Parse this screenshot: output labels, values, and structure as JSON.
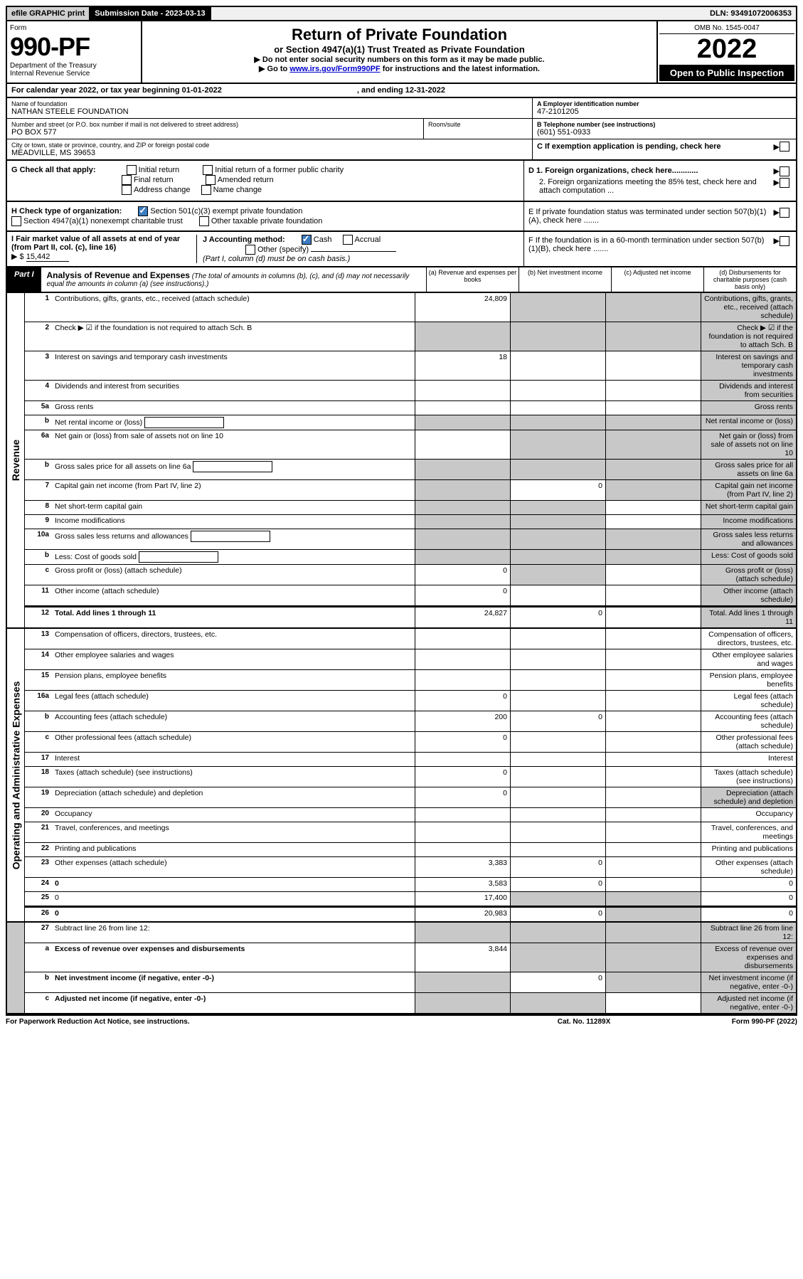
{
  "top_bar": {
    "efile": "efile GRAPHIC print",
    "submission_label": "Submission Date - 2023-03-13",
    "dln": "DLN: 93491072006353"
  },
  "header": {
    "form_label": "Form",
    "form_number": "990-PF",
    "dept": "Department of the Treasury",
    "irs": "Internal Revenue Service",
    "title": "Return of Private Foundation",
    "subtitle1": "or Section 4947(a)(1) Trust Treated as Private Foundation",
    "subtitle2": "▶ Do not enter social security numbers on this form as it may be made public.",
    "subtitle3_pre": "▶ Go to ",
    "subtitle3_link": "www.irs.gov/Form990PF",
    "subtitle3_post": " for instructions and the latest information.",
    "omb": "OMB No. 1545-0047",
    "year": "2022",
    "open": "Open to Public Inspection"
  },
  "calendar": {
    "pre": "For calendar year 2022, or tax year beginning 01-01-2022",
    "mid": ", and ending 12-31-2022"
  },
  "info": {
    "name_lbl": "Name of foundation",
    "name_val": "NATHAN STEELE FOUNDATION",
    "addr_lbl": "Number and street (or P.O. box number if mail is not delivered to street address)",
    "addr_val": "PO BOX 577",
    "room_lbl": "Room/suite",
    "city_lbl": "City or town, state or province, country, and ZIP or foreign postal code",
    "city_val": "MEADVILLE, MS  39653",
    "a_lbl": "A Employer identification number",
    "a_val": "47-2101205",
    "b_lbl": "B Telephone number (see instructions)",
    "b_val": "(601) 551-0933",
    "c_lbl": "C If exemption application is pending, check here"
  },
  "checks": {
    "g_lbl": "G Check all that apply:",
    "g_opts": [
      "Initial return",
      "Initial return of a former public charity",
      "Final return",
      "Amended return",
      "Address change",
      "Name change"
    ],
    "h_lbl": "H Check type of organization:",
    "h_opt1": "Section 501(c)(3) exempt private foundation",
    "h_opt2": "Section 4947(a)(1) nonexempt charitable trust",
    "h_opt3": "Other taxable private foundation",
    "i_lbl": "I Fair market value of all assets at end of year (from Part II, col. (c), line 16)",
    "i_val": "15,442",
    "i_prefix": "▶ $",
    "j_lbl": "J Accounting method:",
    "j_cash": "Cash",
    "j_accrual": "Accrual",
    "j_other": "Other (specify)",
    "j_note": "(Part I, column (d) must be on cash basis.)",
    "d1": "D 1. Foreign organizations, check here............",
    "d2": "2. Foreign organizations meeting the 85% test, check here and attach computation ...",
    "e": "E  If private foundation status was terminated under section 507(b)(1)(A), check here .......",
    "f": "F  If the foundation is in a 60-month termination under section 507(b)(1)(B), check here .......",
    "arrow": "▶"
  },
  "part1": {
    "label": "Part I",
    "title": "Analysis of Revenue and Expenses",
    "title_note": "(The total of amounts in columns (b), (c), and (d) may not necessarily equal the amounts in column (a) (see instructions).)",
    "col_a": "(a) Revenue and expenses per books",
    "col_b": "(b) Net investment income",
    "col_c": "(c) Adjusted net income",
    "col_d": "(d) Disbursements for charitable purposes (cash basis only)"
  },
  "side_labels": {
    "revenue": "Revenue",
    "expenses": "Operating and Administrative Expenses"
  },
  "rows": [
    {
      "n": "1",
      "d": "Contributions, gifts, grants, etc., received (attach schedule)",
      "a": "24,809",
      "b_sh": true,
      "c_sh": true,
      "d_sh": true
    },
    {
      "n": "2",
      "d": "Check ▶ ☑ if the foundation is not required to attach Sch. B",
      "a_sh": true,
      "b_sh": true,
      "c_sh": true,
      "d_sh": true,
      "not_bold": true
    },
    {
      "n": "3",
      "d": "Interest on savings and temporary cash investments",
      "a": "18",
      "d_sh": true
    },
    {
      "n": "4",
      "d": "Dividends and interest from securities",
      "d_sh": true
    },
    {
      "n": "5a",
      "d": "Gross rents",
      "d_sh": true
    },
    {
      "n": "b",
      "d": "Net rental income or (loss)",
      "a_sh": true,
      "b_sh": true,
      "c_sh": true,
      "d_sh": true,
      "box": true
    },
    {
      "n": "6a",
      "d": "Net gain or (loss) from sale of assets not on line 10",
      "b_sh": true,
      "c_sh": true,
      "d_sh": true
    },
    {
      "n": "b",
      "d": "Gross sales price for all assets on line 6a",
      "a_sh": true,
      "b_sh": true,
      "c_sh": true,
      "d_sh": true,
      "box": true
    },
    {
      "n": "7",
      "d": "Capital gain net income (from Part IV, line 2)",
      "a_sh": true,
      "b": "0",
      "c_sh": true,
      "d_sh": true
    },
    {
      "n": "8",
      "d": "Net short-term capital gain",
      "a_sh": true,
      "b_sh": true,
      "d_sh": true
    },
    {
      "n": "9",
      "d": "Income modifications",
      "a_sh": true,
      "b_sh": true,
      "d_sh": true
    },
    {
      "n": "10a",
      "d": "Gross sales less returns and allowances",
      "a_sh": true,
      "b_sh": true,
      "c_sh": true,
      "d_sh": true,
      "box": true
    },
    {
      "n": "b",
      "d": "Less: Cost of goods sold",
      "a_sh": true,
      "b_sh": true,
      "c_sh": true,
      "d_sh": true,
      "box": true
    },
    {
      "n": "c",
      "d": "Gross profit or (loss) (attach schedule)",
      "a": "0",
      "b_sh": true,
      "d_sh": true
    },
    {
      "n": "11",
      "d": "Other income (attach schedule)",
      "a": "0",
      "d_sh": true
    },
    {
      "n": "12",
      "d": "Total. Add lines 1 through 11",
      "a": "24,827",
      "b": "0",
      "d_sh": true,
      "bold": true,
      "divider": true
    }
  ],
  "exp_rows": [
    {
      "n": "13",
      "d": "Compensation of officers, directors, trustees, etc."
    },
    {
      "n": "14",
      "d": "Other employee salaries and wages"
    },
    {
      "n": "15",
      "d": "Pension plans, employee benefits"
    },
    {
      "n": "16a",
      "d": "Legal fees (attach schedule)",
      "a": "0"
    },
    {
      "n": "b",
      "d": "Accounting fees (attach schedule)",
      "a": "200",
      "b": "0"
    },
    {
      "n": "c",
      "d": "Other professional fees (attach schedule)",
      "a": "0"
    },
    {
      "n": "17",
      "d": "Interest"
    },
    {
      "n": "18",
      "d": "Taxes (attach schedule) (see instructions)",
      "a": "0"
    },
    {
      "n": "19",
      "d": "Depreciation (attach schedule) and depletion",
      "a": "0",
      "d_sh": true
    },
    {
      "n": "20",
      "d": "Occupancy"
    },
    {
      "n": "21",
      "d": "Travel, conferences, and meetings"
    },
    {
      "n": "22",
      "d": "Printing and publications"
    },
    {
      "n": "23",
      "d": "Other expenses (attach schedule)",
      "a": "3,383",
      "b": "0"
    },
    {
      "n": "24",
      "d": "0",
      "a": "3,583",
      "b": "0",
      "bold": true
    },
    {
      "n": "25",
      "d": "0",
      "a": "17,400",
      "b_sh": true,
      "c_sh": true
    },
    {
      "n": "26",
      "d": "0",
      "a": "20,983",
      "b": "0",
      "c_sh": true,
      "bold": true,
      "divider": true
    }
  ],
  "net_rows": [
    {
      "n": "27",
      "d": "Subtract line 26 from line 12:",
      "a_sh": true,
      "b_sh": true,
      "c_sh": true,
      "d_sh": true
    },
    {
      "n": "a",
      "d": "Excess of revenue over expenses and disbursements",
      "a": "3,844",
      "b_sh": true,
      "c_sh": true,
      "d_sh": true,
      "bold": true
    },
    {
      "n": "b",
      "d": "Net investment income (if negative, enter -0-)",
      "a_sh": true,
      "b": "0",
      "c_sh": true,
      "d_sh": true,
      "bold": true
    },
    {
      "n": "c",
      "d": "Adjusted net income (if negative, enter -0-)",
      "a_sh": true,
      "b_sh": true,
      "d_sh": true,
      "bold": true
    }
  ],
  "footer": {
    "left": "For Paperwork Reduction Act Notice, see instructions.",
    "mid": "Cat. No. 11289X",
    "right": "Form 990-PF (2022)"
  }
}
